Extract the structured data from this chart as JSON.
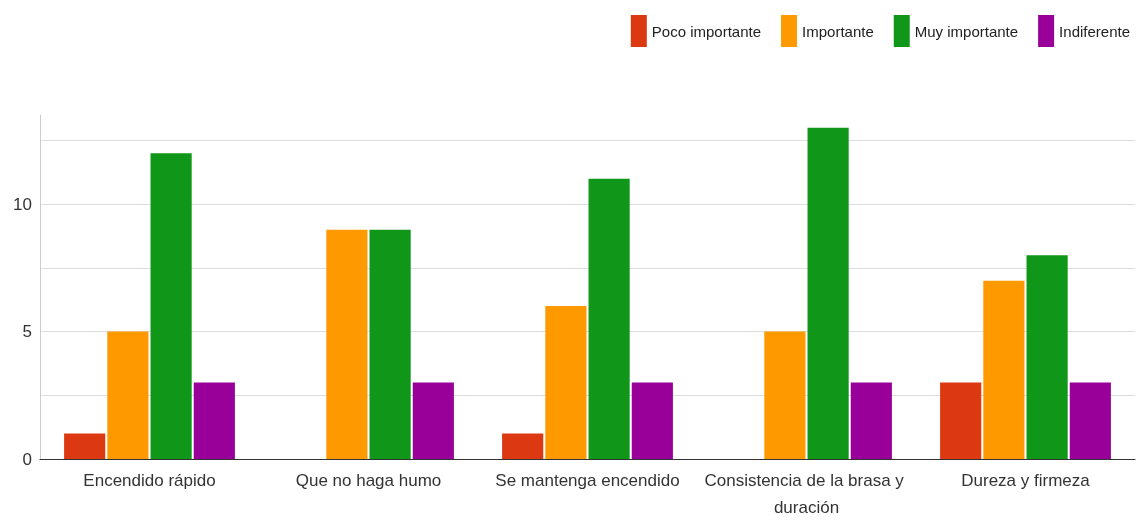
{
  "chart_data": {
    "type": "bar",
    "categories": [
      "Encendido rápido",
      "Que no haga humo",
      "Se mantenga encendido",
      "Consistencia de la brasa y duración",
      "Dureza y firmeza"
    ],
    "series": [
      {
        "name": "Poco importante",
        "color": "#dc3912",
        "values": [
          1,
          0,
          1,
          0,
          3
        ]
      },
      {
        "name": "Importante",
        "color": "#ff9900",
        "values": [
          5,
          9,
          6,
          5,
          7
        ]
      },
      {
        "name": "Muy importante",
        "color": "#109618",
        "values": [
          12,
          9,
          11,
          13,
          8
        ]
      },
      {
        "name": "Indiferente",
        "color": "#990099",
        "values": [
          3,
          3,
          3,
          3,
          3
        ]
      }
    ],
    "ylim": [
      0,
      13.5
    ],
    "yticks": [
      0,
      {
        "value": 2.5,
        "label": null
      },
      5,
      {
        "value": 7.5,
        "label": null
      },
      10,
      {
        "value": 12.5,
        "label": null
      }
    ],
    "grid": "y",
    "legend": "top right"
  }
}
